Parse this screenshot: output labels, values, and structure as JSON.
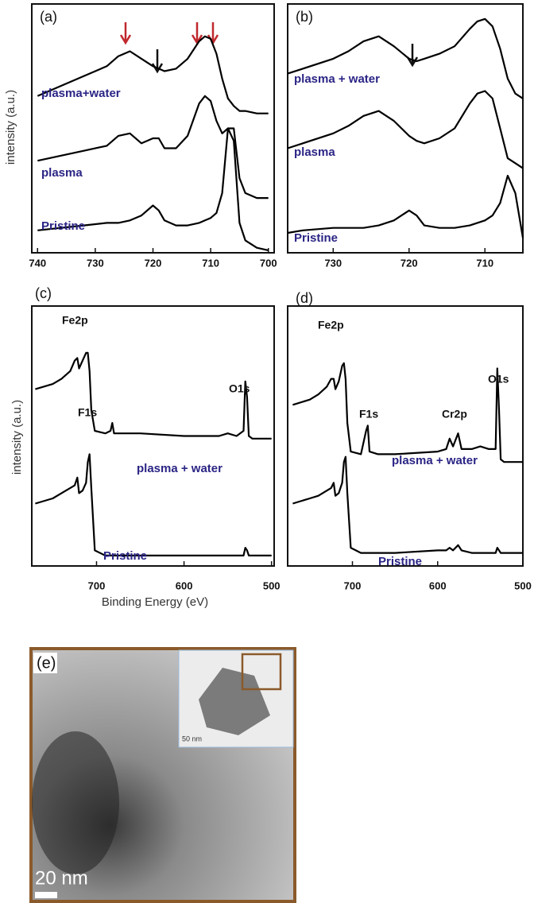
{
  "chart_data": [
    {
      "type": "line",
      "title": "(a)",
      "y_label": "intensity (a.u.)",
      "x": [
        740,
        736,
        732,
        728,
        726,
        724,
        722,
        720,
        719,
        718,
        716,
        714,
        712,
        711,
        710,
        709,
        708,
        707,
        706,
        705,
        704,
        702,
        700
      ],
      "xlim": [
        741,
        699
      ],
      "xticks": [
        740,
        730,
        720,
        710,
        700
      ],
      "ylim": [
        0,
        100
      ],
      "series": [
        {
          "name": "plasma+water",
          "color": "#000000",
          "values": [
            63,
            67,
            71,
            75,
            79,
            81,
            78,
            75,
            74,
            73,
            74,
            78,
            85,
            87,
            86,
            80,
            70,
            62,
            59,
            57,
            57,
            56,
            56
          ]
        },
        {
          "name": "plasma",
          "color": "#000000",
          "values": [
            37,
            39,
            41,
            43,
            47,
            48,
            44,
            46,
            46,
            42,
            42,
            47,
            60,
            63,
            61,
            53,
            48,
            50,
            50,
            30,
            24,
            22,
            22
          ]
        },
        {
          "name": "Pristine",
          "color": "#000000",
          "values": [
            9,
            10,
            11,
            12,
            12,
            13,
            15,
            19,
            17,
            13,
            11,
            11,
            12,
            13,
            14,
            16,
            24,
            50,
            45,
            12,
            5,
            2,
            1
          ]
        }
      ]
    },
    {
      "type": "line",
      "title": "(b)",
      "x": [
        736,
        734,
        730,
        728,
        726,
        724,
        722,
        720,
        719,
        718,
        716,
        714,
        712,
        711,
        710,
        709,
        708,
        707,
        706,
        705
      ],
      "xlim": [
        736,
        705
      ],
      "xticks": [
        730,
        720,
        710
      ],
      "ylim": [
        0,
        100
      ],
      "series": [
        {
          "name": "plasma + water",
          "color": "#000000",
          "values": [
            72,
            74,
            78,
            81,
            85,
            87,
            83,
            78,
            77,
            78,
            80,
            83,
            90,
            93,
            94,
            91,
            82,
            70,
            64,
            62
          ]
        },
        {
          "name": "plasma",
          "color": "#000000",
          "values": [
            42,
            44,
            48,
            51,
            55,
            57,
            53,
            47,
            45,
            44,
            46,
            50,
            60,
            64,
            65,
            62,
            50,
            38,
            36,
            34
          ]
        },
        {
          "name": "Pristine",
          "color": "#000000",
          "values": [
            8,
            9,
            10,
            10,
            10,
            11,
            13,
            17,
            15,
            11,
            10,
            10,
            11,
            12,
            13,
            15,
            20,
            31,
            24,
            6
          ]
        }
      ]
    },
    {
      "type": "line",
      "title": "(c)",
      "y_label": "intensity (a.u.)",
      "x_label": "Binding Energy (eV)",
      "annotations": [
        "Fe2p",
        "F1s",
        "O1s"
      ],
      "x": [
        770,
        750,
        740,
        730,
        725,
        722,
        720,
        716,
        712,
        710,
        708,
        706,
        702,
        690,
        684,
        682,
        680,
        670,
        650,
        600,
        560,
        550,
        540,
        532,
        530,
        528,
        526,
        522,
        510,
        500
      ],
      "xlim": [
        774,
        497
      ],
      "xticks": [
        700,
        600,
        500
      ],
      "ylim": [
        0,
        100
      ],
      "series": [
        {
          "name": "plasma + water",
          "color": "#000000",
          "values": [
            68,
            70,
            72,
            75,
            79,
            80,
            76,
            79,
            82,
            82,
            75,
            60,
            52,
            51,
            52,
            55,
            51,
            51,
            51,
            50,
            50,
            51,
            50,
            52,
            71,
            65,
            50,
            49,
            49,
            49
          ]
        },
        {
          "name": "Pristine",
          "color": "#000000",
          "values": [
            24,
            26,
            28,
            30,
            31,
            34,
            28,
            29,
            32,
            40,
            43,
            30,
            6,
            4,
            4,
            4,
            4,
            4,
            4,
            4,
            4,
            4,
            4,
            4,
            7,
            6,
            4,
            4,
            4,
            4
          ]
        }
      ]
    },
    {
      "type": "line",
      "title": "(d)",
      "annotations": [
        "Fe2p",
        "F1s",
        "Cr2p",
        "O1s"
      ],
      "x": [
        770,
        750,
        740,
        730,
        725,
        722,
        720,
        716,
        712,
        710,
        708,
        706,
        702,
        690,
        684,
        682,
        680,
        670,
        650,
        600,
        590,
        586,
        582,
        576,
        572,
        560,
        550,
        540,
        532,
        530,
        528,
        526,
        522,
        510,
        500
      ],
      "xlim": [
        776,
        500
      ],
      "xticks": [
        700,
        600,
        500
      ],
      "ylim": [
        0,
        100
      ],
      "series": [
        {
          "name": "plasma + water",
          "color": "#000000",
          "values": [
            62,
            64,
            66,
            69,
            72,
            72,
            68,
            71,
            77,
            78,
            72,
            55,
            44,
            43,
            52,
            54,
            44,
            43,
            43,
            44,
            45,
            49,
            46,
            51,
            45,
            45,
            46,
            45,
            45,
            76,
            60,
            41,
            40,
            40,
            40
          ]
        },
        {
          "name": "Pristine",
          "color": "#000000",
          "values": [
            24,
            26,
            27,
            29,
            30,
            32,
            27,
            28,
            32,
            40,
            42,
            28,
            7,
            5,
            5,
            5,
            5,
            5,
            5,
            6,
            6,
            7,
            6,
            8,
            6,
            5,
            5,
            5,
            5,
            7,
            6,
            5,
            5,
            5,
            5
          ]
        }
      ]
    }
  ],
  "image_panel": {
    "label": "(e)",
    "scale_bar": "20 nm",
    "inset_scale_bar": "50 nm"
  }
}
